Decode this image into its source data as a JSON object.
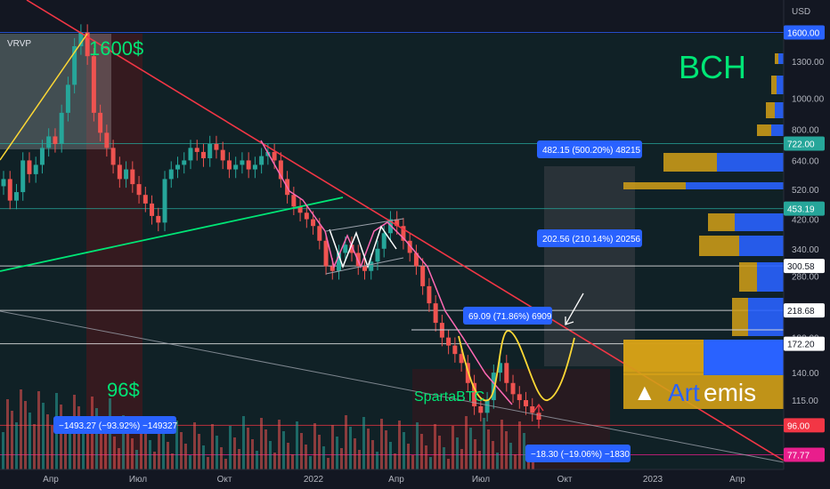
{
  "chart_data": {
    "type": "candlestick",
    "symbol_text": "BCH",
    "indicator_label": "VRVP",
    "currency_label": "USD",
    "brand_text": "Art",
    "brand_text2": "emis",
    "author_text": "SpartaBTC",
    "annotations": {
      "top_price": "1600$",
      "bottom_price": "96$"
    },
    "x_ticks": [
      "Апр",
      "Июл",
      "Окт",
      "2022",
      "Апр",
      "Июл",
      "Окт",
      "2023",
      "Апр"
    ],
    "y_scale": "log",
    "y_ticks": [
      "1300.00",
      "1000.00",
      "800.00",
      "640.00",
      "520.00",
      "420.00",
      "340.00",
      "280.00",
      "180.00",
      "140.00",
      "115.00"
    ],
    "ylim": [
      70,
      1800
    ],
    "price_tags": [
      {
        "value": 1600.0,
        "label": "1600.00",
        "color": "#2962ff"
      },
      {
        "value": 722.0,
        "label": "722.00",
        "color": "#26a69a"
      },
      {
        "value": 453.19,
        "label": "453.19",
        "color": "#26a69a"
      },
      {
        "value": 300.58,
        "label": "300.58",
        "color": "#ffffff"
      },
      {
        "value": 218.68,
        "label": "218.68",
        "color": "#ffffff"
      },
      {
        "value": 172.2,
        "label": "172.20",
        "color": "#ffffff"
      },
      {
        "value": 96.0,
        "label": "96.00",
        "color": "#f23645"
      },
      {
        "value": 77.77,
        "label": "77.77",
        "color": "#e91e8c"
      }
    ],
    "measurements": [
      {
        "text": "482.15 (500.20%) 48215",
        "color": "#2962ff"
      },
      {
        "text": "202.56 (210.14%) 20256",
        "color": "#2962ff"
      },
      {
        "text": "69.09 (71.86%) 6909",
        "color": "#2962ff"
      },
      {
        "text": "−1493.27 (−93.92%) −149327",
        "color": "#2962ff"
      },
      {
        "text": "−18.30 (−19.06%) −1830",
        "color": "#2962ff"
      }
    ],
    "series_close": [
      560,
      480,
      510,
      640,
      580,
      620,
      700,
      760,
      720,
      900,
      1100,
      1450,
      1600,
      1350,
      900,
      780,
      700,
      620,
      560,
      600,
      540,
      500,
      470,
      430,
      410,
      560,
      600,
      620,
      640,
      700,
      680,
      650,
      720,
      690,
      640,
      600,
      620,
      640,
      600,
      620,
      660,
      680,
      640,
      560,
      500,
      460,
      440,
      420,
      400,
      360,
      300,
      290,
      330,
      350,
      330,
      300,
      290,
      310,
      340,
      380,
      420,
      400,
      360,
      330,
      300,
      260,
      230,
      200,
      180,
      170,
      160,
      150,
      130,
      110,
      105,
      115,
      140,
      150,
      130,
      120,
      115,
      110,
      105,
      100
    ],
    "colors": {
      "up": "#26a69a",
      "down": "#ef5350",
      "trendline": "#f23645",
      "support_green": "#00e676",
      "projection": "#fdd835",
      "channel": "#ff69b4",
      "profile_up": "#2962ff",
      "profile_down": "#d4a017"
    }
  }
}
